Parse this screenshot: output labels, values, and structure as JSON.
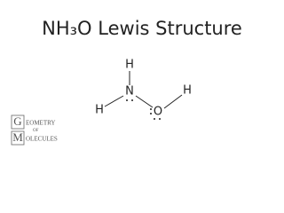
{
  "header": {
    "title": "NH₃O Lewis Structure"
  },
  "nodes": [
    {
      "label": "H"
    },
    {
      "label": "N"
    },
    {
      "label": "H"
    },
    {
      "label": "O"
    },
    {
      "label": "H"
    }
  ],
  "logo": {
    "initial1": "G",
    "word1": "EOMETRY",
    "middle": "OF",
    "initial2": "M",
    "word2": "OLECULES"
  }
}
